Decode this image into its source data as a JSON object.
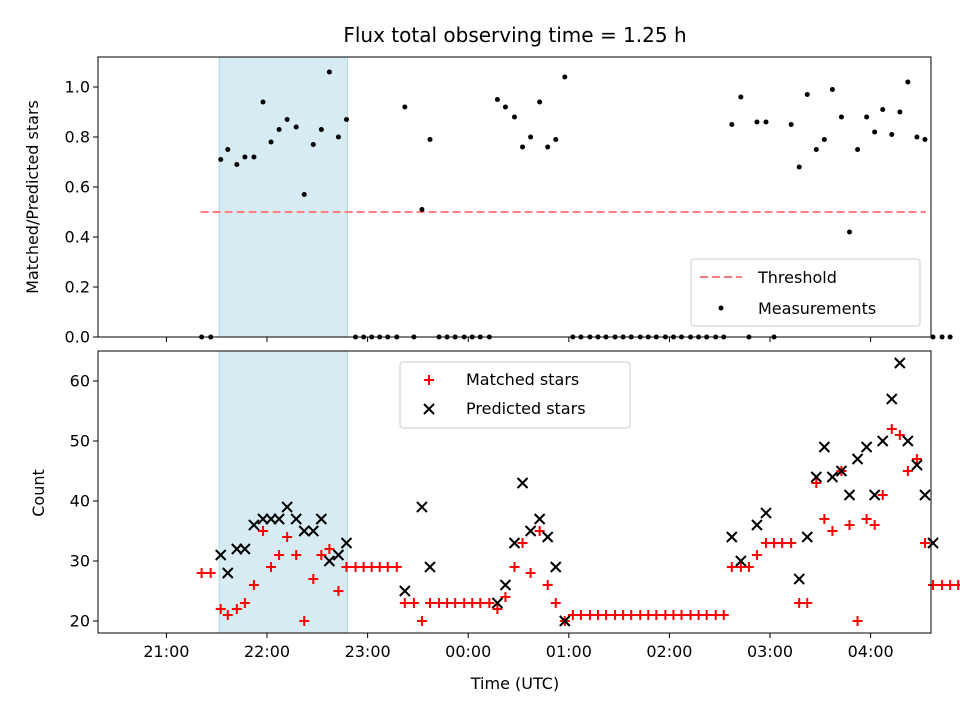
{
  "figure_title": "Flux total observing time = 1.25 h",
  "colors": {
    "matched": "#ff0000",
    "predicted": "#000000",
    "threshold": "#ff7f7f",
    "measurements": "#000000",
    "highlight": "#add8e6"
  },
  "chart_data": [
    {
      "type": "scatter",
      "ylabel": "Matched/Predicted stars",
      "xlabel": "",
      "xlim": [
        -0.68,
        7.6
      ],
      "ylim": [
        0.0,
        1.12
      ],
      "yticks": [
        0.0,
        0.2,
        0.4,
        0.6,
        0.8,
        1.0
      ],
      "ytick_labels": [
        "0.0",
        "0.2",
        "0.4",
        "0.6",
        "0.8",
        "1.0"
      ],
      "xticks": [
        0,
        1,
        2,
        3,
        4,
        5,
        6,
        7
      ],
      "highlight": {
        "x": [
          0.525,
          1.8
        ]
      },
      "threshold": {
        "y": 0.5,
        "x": [
          0.34,
          7.55
        ]
      },
      "legend": {
        "position": "lower right",
        "entries": [
          "Threshold",
          "Measurements"
        ]
      },
      "series": [
        {
          "name": "Measurements",
          "points": [
            [
              0.35,
              0.0
            ],
            [
              0.44,
              0.0
            ],
            [
              0.54,
              0.71
            ],
            [
              0.61,
              0.75
            ],
            [
              0.7,
              0.69
            ],
            [
              0.78,
              0.72
            ],
            [
              0.87,
              0.72
            ],
            [
              0.96,
              0.94
            ],
            [
              1.04,
              0.78
            ],
            [
              1.12,
              0.83
            ],
            [
              1.2,
              0.87
            ],
            [
              1.29,
              0.84
            ],
            [
              1.37,
              0.57
            ],
            [
              1.46,
              0.77
            ],
            [
              1.54,
              0.83
            ],
            [
              1.62,
              1.06
            ],
            [
              1.71,
              0.8
            ],
            [
              1.79,
              0.87
            ],
            [
              1.88,
              0.0
            ],
            [
              1.96,
              0.0
            ],
            [
              2.04,
              0.0
            ],
            [
              2.12,
              0.0
            ],
            [
              2.2,
              0.0
            ],
            [
              2.29,
              0.0
            ],
            [
              2.37,
              0.92
            ],
            [
              2.46,
              0.0
            ],
            [
              2.54,
              0.51
            ],
            [
              2.62,
              0.79
            ],
            [
              2.71,
              0.0
            ],
            [
              2.79,
              0.0
            ],
            [
              2.87,
              0.0
            ],
            [
              2.96,
              0.0
            ],
            [
              3.04,
              0.0
            ],
            [
              3.12,
              0.0
            ],
            [
              3.21,
              0.0
            ],
            [
              3.29,
              0.95
            ],
            [
              3.37,
              0.92
            ],
            [
              3.46,
              0.88
            ],
            [
              3.54,
              0.76
            ],
            [
              3.62,
              0.8
            ],
            [
              3.71,
              0.94
            ],
            [
              3.79,
              0.76
            ],
            [
              3.87,
              0.79
            ],
            [
              3.96,
              1.04
            ],
            [
              4.04,
              0.0
            ],
            [
              4.12,
              0.0
            ],
            [
              4.21,
              0.0
            ],
            [
              4.29,
              0.0
            ],
            [
              4.37,
              0.0
            ],
            [
              4.46,
              0.0
            ],
            [
              4.54,
              0.0
            ],
            [
              4.62,
              0.0
            ],
            [
              4.71,
              0.0
            ],
            [
              4.79,
              0.0
            ],
            [
              4.87,
              0.0
            ],
            [
              4.96,
              0.0
            ],
            [
              5.04,
              0.0
            ],
            [
              5.12,
              0.0
            ],
            [
              5.21,
              0.0
            ],
            [
              5.29,
              0.0
            ],
            [
              5.37,
              0.0
            ],
            [
              5.46,
              0.0
            ],
            [
              5.54,
              0.0
            ],
            [
              5.62,
              0.85
            ],
            [
              5.71,
              0.96
            ],
            [
              5.79,
              0.0
            ],
            [
              5.87,
              0.86
            ],
            [
              5.96,
              0.86
            ],
            [
              6.04,
              0.0
            ],
            [
              6.21,
              0.85
            ],
            [
              6.29,
              0.68
            ],
            [
              6.37,
              0.97
            ],
            [
              6.46,
              0.75
            ],
            [
              6.54,
              0.79
            ],
            [
              6.62,
              0.99
            ],
            [
              6.71,
              0.88
            ],
            [
              6.79,
              0.42
            ],
            [
              6.87,
              0.75
            ],
            [
              6.96,
              0.88
            ],
            [
              7.04,
              0.82
            ],
            [
              7.12,
              0.91
            ],
            [
              7.21,
              0.81
            ],
            [
              7.29,
              0.9
            ],
            [
              7.37,
              1.02
            ],
            [
              7.46,
              0.8
            ],
            [
              7.54,
              0.79
            ],
            [
              7.62,
              0.0
            ],
            [
              7.71,
              0.0
            ],
            [
              7.79,
              0.0
            ]
          ]
        }
      ]
    },
    {
      "type": "scatter",
      "xlabel": "Time (UTC)",
      "ylabel": "Count",
      "xlim": [
        -0.68,
        7.6
      ],
      "ylim": [
        18,
        65
      ],
      "yticks": [
        20,
        30,
        40,
        50,
        60
      ],
      "ytick_labels": [
        "20",
        "30",
        "40",
        "50",
        "60"
      ],
      "xticks": [
        0,
        1,
        2,
        3,
        4,
        5,
        6,
        7
      ],
      "xtick_labels": [
        "21:00",
        "22:00",
        "23:00",
        "00:00",
        "01:00",
        "02:00",
        "03:00",
        "04:00"
      ],
      "highlight": {
        "x": [
          0.525,
          1.8
        ]
      },
      "legend": {
        "position": "upper center",
        "entries": [
          "Matched stars",
          "Predicted stars"
        ]
      },
      "series": [
        {
          "name": "Matched stars",
          "points": [
            [
              0.35,
              28
            ],
            [
              0.44,
              28
            ],
            [
              0.54,
              22
            ],
            [
              0.61,
              21
            ],
            [
              0.7,
              22
            ],
            [
              0.78,
              23
            ],
            [
              0.87,
              26
            ],
            [
              0.96,
              35
            ],
            [
              1.04,
              29
            ],
            [
              1.12,
              31
            ],
            [
              1.2,
              34
            ],
            [
              1.29,
              31
            ],
            [
              1.37,
              20
            ],
            [
              1.46,
              27
            ],
            [
              1.54,
              31
            ],
            [
              1.62,
              32
            ],
            [
              1.71,
              25
            ],
            [
              1.79,
              29
            ],
            [
              1.88,
              29
            ],
            [
              1.96,
              29
            ],
            [
              2.04,
              29
            ],
            [
              2.12,
              29
            ],
            [
              2.2,
              29
            ],
            [
              2.29,
              29
            ],
            [
              2.37,
              23
            ],
            [
              2.46,
              23
            ],
            [
              2.54,
              20
            ],
            [
              2.62,
              23
            ],
            [
              2.71,
              23
            ],
            [
              2.79,
              23
            ],
            [
              2.87,
              23
            ],
            [
              2.96,
              23
            ],
            [
              3.04,
              23
            ],
            [
              3.12,
              23
            ],
            [
              3.21,
              23
            ],
            [
              3.29,
              22
            ],
            [
              3.37,
              24
            ],
            [
              3.46,
              29
            ],
            [
              3.54,
              33
            ],
            [
              3.62,
              28
            ],
            [
              3.71,
              35
            ],
            [
              3.79,
              26
            ],
            [
              3.87,
              23
            ],
            [
              3.96,
              20
            ],
            [
              4.04,
              21
            ],
            [
              4.12,
              21
            ],
            [
              4.21,
              21
            ],
            [
              4.29,
              21
            ],
            [
              4.37,
              21
            ],
            [
              4.46,
              21
            ],
            [
              4.54,
              21
            ],
            [
              4.62,
              21
            ],
            [
              4.71,
              21
            ],
            [
              4.79,
              21
            ],
            [
              4.87,
              21
            ],
            [
              4.96,
              21
            ],
            [
              5.04,
              21
            ],
            [
              5.12,
              21
            ],
            [
              5.21,
              21
            ],
            [
              5.29,
              21
            ],
            [
              5.37,
              21
            ],
            [
              5.46,
              21
            ],
            [
              5.54,
              21
            ],
            [
              5.62,
              29
            ],
            [
              5.71,
              29
            ],
            [
              5.79,
              29
            ],
            [
              5.87,
              31
            ],
            [
              5.96,
              33
            ],
            [
              6.04,
              33
            ],
            [
              6.12,
              33
            ],
            [
              6.21,
              33
            ],
            [
              6.29,
              23
            ],
            [
              6.37,
              23
            ],
            [
              6.46,
              43
            ],
            [
              6.54,
              37
            ],
            [
              6.62,
              35
            ],
            [
              6.71,
              45
            ],
            [
              6.79,
              36
            ],
            [
              6.87,
              20
            ],
            [
              6.96,
              37
            ],
            [
              7.04,
              36
            ],
            [
              7.12,
              41
            ],
            [
              7.21,
              52
            ],
            [
              7.29,
              51
            ],
            [
              7.37,
              45
            ],
            [
              7.46,
              47
            ],
            [
              7.54,
              33
            ],
            [
              7.62,
              26
            ],
            [
              7.71,
              26
            ],
            [
              7.79,
              26
            ],
            [
              7.87,
              26
            ],
            [
              7.96,
              26
            ]
          ]
        },
        {
          "name": "Predicted stars",
          "points": [
            [
              0.54,
              31
            ],
            [
              0.61,
              28
            ],
            [
              0.7,
              32
            ],
            [
              0.78,
              32
            ],
            [
              0.87,
              36
            ],
            [
              0.96,
              37
            ],
            [
              1.04,
              37
            ],
            [
              1.12,
              37
            ],
            [
              1.2,
              39
            ],
            [
              1.29,
              37
            ],
            [
              1.37,
              35
            ],
            [
              1.46,
              35
            ],
            [
              1.54,
              37
            ],
            [
              1.62,
              30
            ],
            [
              1.71,
              31
            ],
            [
              1.79,
              33
            ],
            [
              2.37,
              25
            ],
            [
              2.54,
              39
            ],
            [
              2.62,
              29
            ],
            [
              3.29,
              23
            ],
            [
              3.37,
              26
            ],
            [
              3.46,
              33
            ],
            [
              3.54,
              43
            ],
            [
              3.62,
              35
            ],
            [
              3.71,
              37
            ],
            [
              3.79,
              34
            ],
            [
              3.87,
              29
            ],
            [
              3.96,
              20
            ],
            [
              5.62,
              34
            ],
            [
              5.71,
              30
            ],
            [
              5.87,
              36
            ],
            [
              5.96,
              38
            ],
            [
              6.29,
              27
            ],
            [
              6.37,
              34
            ],
            [
              6.46,
              44
            ],
            [
              6.54,
              49
            ],
            [
              6.62,
              44
            ],
            [
              6.71,
              45
            ],
            [
              6.79,
              41
            ],
            [
              6.87,
              47
            ],
            [
              6.96,
              49
            ],
            [
              7.04,
              41
            ],
            [
              7.12,
              50
            ],
            [
              7.21,
              57
            ],
            [
              7.29,
              63
            ],
            [
              7.37,
              50
            ],
            [
              7.46,
              46
            ],
            [
              7.54,
              41
            ],
            [
              7.62,
              33
            ]
          ]
        }
      ]
    }
  ]
}
